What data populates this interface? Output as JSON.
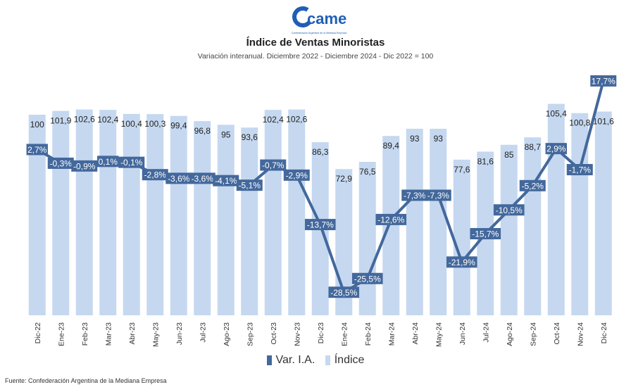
{
  "logo": {
    "text": "came",
    "subtext": "Confederación Argentina de la Mediana Empresa"
  },
  "header": {
    "title": "Índice de Ventas Minoristas",
    "subtitle": "Variación interanual. Diciembre 2022 - Diciembre 2024 - Dic 2022 = 100"
  },
  "footer": {
    "source": "Fuente: Confederación Argentina de la Mediana Empresa"
  },
  "colors": {
    "line": "#43689c",
    "bar": "#c5d8f0",
    "label_bg": "#43689c"
  },
  "chart_data": {
    "type": "bar",
    "categories": [
      "Dic-22",
      "Ene-23",
      "Feb-23",
      "Mar-23",
      "Abr-23",
      "May-23",
      "Jun-23",
      "Jul-23",
      "Ago-23",
      "Sep-23",
      "Oct-23",
      "Nov-23",
      "Dic-23",
      "Ene-24",
      "Feb-24",
      "Mar-24",
      "Abr-24",
      "May-24",
      "Jun-24",
      "Jul-24",
      "Ago-24",
      "Sep-24",
      "Oct-24",
      "Nov-24",
      "Dic-24"
    ],
    "series": [
      {
        "name": "Índice",
        "type": "bar",
        "values": [
          100,
          101.9,
          102.6,
          102.4,
          100.4,
          100.3,
          99.4,
          96.8,
          95,
          93.6,
          102.4,
          102.6,
          86.3,
          72.9,
          76.5,
          89.4,
          93,
          93,
          77.6,
          81.6,
          85,
          88.7,
          105.4,
          100.8,
          101.6
        ],
        "labels": [
          "100",
          "101,9",
          "102,6",
          "102,4",
          "100,4",
          "100,3",
          "99,4",
          "96,8",
          "95",
          "93,6",
          "102,4",
          "102,6",
          "86,3",
          "72,9",
          "76,5",
          "89,4",
          "93",
          "93",
          "77,6",
          "81,6",
          "85",
          "88,7",
          "105,4",
          "100,8",
          "101,6"
        ]
      },
      {
        "name": "Var. I.A.",
        "type": "line",
        "values": [
          2.7,
          -0.3,
          -0.9,
          0.1,
          -0.1,
          -2.8,
          -3.6,
          -3.6,
          -4.1,
          -5.1,
          -0.7,
          -2.9,
          -13.7,
          -28.5,
          -25.5,
          -12.6,
          -7.3,
          -7.3,
          -21.9,
          -15.7,
          -10.5,
          -5.2,
          2.9,
          -1.7,
          17.7
        ],
        "labels": [
          "2,7%",
          "-0,3%",
          "-0,9%",
          "0,1%",
          "-0,1%",
          "-2,8%",
          "-3,6%",
          "-3,6%",
          "-4,1%",
          "-5,1%",
          "-0,7%",
          "-2,9%",
          "-13,7%",
          "-28,5%",
          "-25,5%",
          "-12,6%",
          "-7,3%",
          "-7,3%",
          "-21,9%",
          "-15,7%",
          "-10,5%",
          "-5,2%",
          "2,9%",
          "-1,7%",
          "17,7%"
        ]
      }
    ],
    "legend": {
      "position": "bottom",
      "entries": [
        "Var. I.A.",
        "Índice"
      ]
    },
    "grid": false
  }
}
